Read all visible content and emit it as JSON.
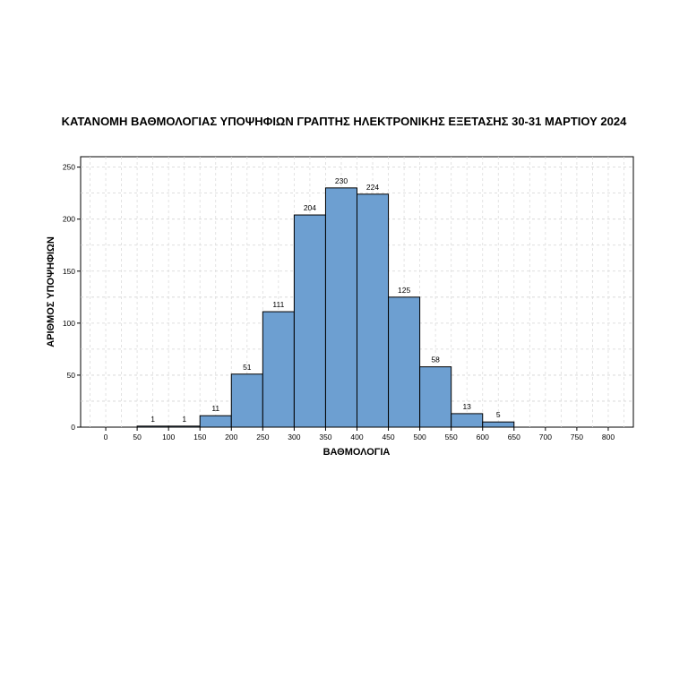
{
  "chart_data": {
    "type": "bar",
    "title": "ΚΑΤΑΝΟΜΗ ΒΑΘΜΟΛΟΓΙΑΣ ΥΠΟΨΗΦΙΩΝ ΓΡΑΠΤΗΣ ΗΛΕΚΤΡΟΝΙΚΗΣ ΕΞΕΤΑΣΗΣ 30-31 ΜΑΡΤΙΟΥ 2024",
    "xlabel": "ΒΑΘΜΟΛΟΓΙΑ",
    "ylabel": "ΑΡΙΘΜΟΣ ΥΠΟΨΗΦΙΩΝ",
    "xlim": [
      -40,
      840
    ],
    "ylim": [
      0,
      260
    ],
    "x_ticks": [
      0,
      50,
      100,
      150,
      200,
      250,
      300,
      350,
      400,
      450,
      500,
      550,
      600,
      650,
      700,
      750,
      800
    ],
    "y_ticks": [
      0,
      50,
      100,
      150,
      200,
      250
    ],
    "bins": [
      {
        "start": 50,
        "end": 100,
        "count": 1
      },
      {
        "start": 100,
        "end": 150,
        "count": 1
      },
      {
        "start": 150,
        "end": 200,
        "count": 11
      },
      {
        "start": 200,
        "end": 250,
        "count": 51
      },
      {
        "start": 250,
        "end": 300,
        "count": 111
      },
      {
        "start": 300,
        "end": 350,
        "count": 204
      },
      {
        "start": 350,
        "end": 400,
        "count": 230
      },
      {
        "start": 400,
        "end": 450,
        "count": 224
      },
      {
        "start": 450,
        "end": 500,
        "count": 125
      },
      {
        "start": 500,
        "end": 550,
        "count": 58
      },
      {
        "start": 550,
        "end": 600,
        "count": 13
      },
      {
        "start": 600,
        "end": 650,
        "count": 5
      }
    ],
    "grid": true,
    "bar_color": "#6d9fd1"
  }
}
